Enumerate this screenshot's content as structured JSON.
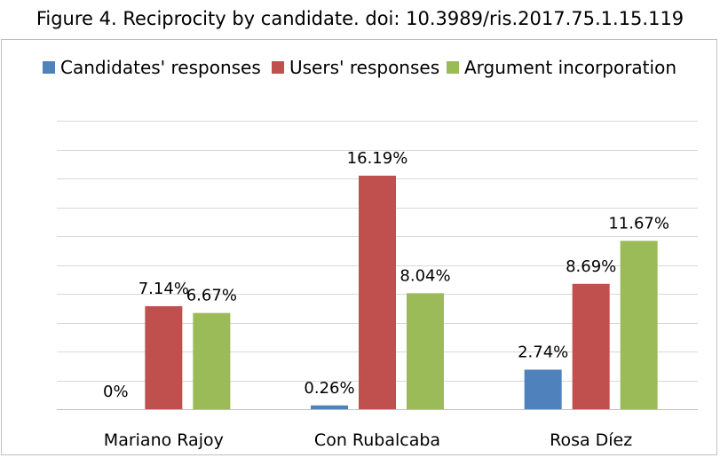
{
  "caption": "Figure 4. Reciprocity by candidate. doi: 10.3989/ris.2017.75.1.15.119",
  "chart_data": {
    "type": "bar",
    "categories": [
      "Mariano Rajoy",
      "Con Rubalcaba",
      "Rosa Díez"
    ],
    "series": [
      {
        "name": "Candidates' responses",
        "color": "#4f81bd",
        "values": [
          0,
          0.26,
          2.74
        ],
        "labels": [
          "0%",
          "0.26%",
          "2.74%"
        ]
      },
      {
        "name": "Users' responses",
        "color": "#c0504d",
        "values": [
          7.14,
          16.19,
          8.69
        ],
        "labels": [
          "7.14%",
          "16.19%",
          "8.69%"
        ]
      },
      {
        "name": "Argument incorporation",
        "color": "#9bbb59",
        "values": [
          6.67,
          8.04,
          11.67
        ],
        "labels": [
          "6.67%",
          "8.04%",
          "11.67%"
        ]
      }
    ],
    "ylim": [
      0,
      20
    ],
    "y_tick_labels_shown": false,
    "grid": true,
    "gridline_color": "#d9d9d9",
    "legend_position": "top"
  }
}
